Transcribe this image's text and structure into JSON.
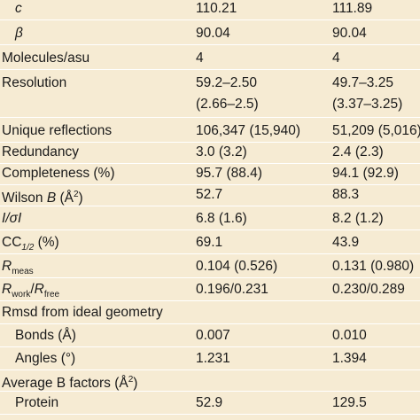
{
  "rows": [
    {
      "label": "c",
      "a": "110.21",
      "b": "111.89"
    },
    {
      "label": "β",
      "a": "90.04",
      "b": "90.04"
    },
    {
      "label": "Molecules/asu",
      "a": "4",
      "b": "4"
    },
    {
      "label": "Resolution",
      "a": "59.2–2.50",
      "a2": "(2.66–2.5)",
      "b": "49.7–3.25",
      "b2": "(3.37–3.25)"
    },
    {
      "label": "Unique reflections",
      "a": "106,347 (15,940)",
      "b": "51,209 (5,016)"
    },
    {
      "label": "Redundancy",
      "a": "3.0 (3.2)",
      "b": "2.4 (2.3)"
    },
    {
      "label": "Completeness (%)",
      "a": "95.7 (88.4)",
      "b": "94.1 (92.9)"
    },
    {
      "label_pre": "Wilson ",
      "label_it": "B",
      "label_post": " (Å",
      "label_sup": "2",
      "label_end": ")",
      "a": "52.7",
      "b": "88.3"
    },
    {
      "label": "I/σI",
      "a": "6.8 (1.6)",
      "b": "8.2 (1.2)"
    },
    {
      "label_pre": "CC",
      "label_sub": "1/2",
      "label_post": " (%)",
      "a": "69.1",
      "b": "43.9"
    },
    {
      "label_it": "R",
      "label_sub": "meas",
      "a": "0.104 (0.526)",
      "b": "0.131 (0.980)"
    },
    {
      "label_it": "R",
      "label_sub": "work",
      "label_mid": "/",
      "label_it2": "R",
      "label_sub2": "free",
      "a": "0.196/0.231",
      "b": "0.230/0.289"
    },
    {
      "label": "Rmsd from ideal geometry",
      "a": "",
      "b": ""
    },
    {
      "label": "Bonds (Å)",
      "a": "0.007",
      "b": "0.010"
    },
    {
      "label": "Angles (°)",
      "a": "1.231",
      "b": "1.394"
    },
    {
      "label_pre": "Average B factors (Å",
      "label_sup": "2",
      "label_end": ")",
      "a": "",
      "b": ""
    },
    {
      "label": "Protein",
      "a": "52.9",
      "b": "129.5"
    }
  ]
}
